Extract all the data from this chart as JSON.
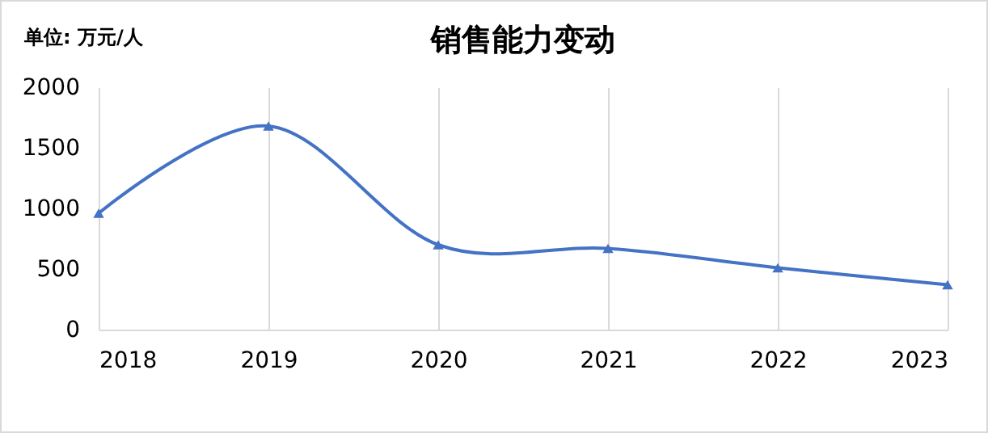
{
  "chart_data": {
    "type": "line",
    "title": "销售能力变动",
    "annotations": [
      "单位: 万元/人"
    ],
    "categories": [
      "2018",
      "2019",
      "2020",
      "2021",
      "2022",
      "2023"
    ],
    "series": [
      {
        "color": "#4472c4",
        "values": [
          960,
          1680,
          700,
          670,
          510,
          370
        ]
      }
    ],
    "ylim": [
      0,
      2000
    ],
    "yticks": [
      0,
      500,
      1000,
      1500,
      2000
    ],
    "grid": "x",
    "marker": "triangle",
    "line_style": "solid"
  }
}
